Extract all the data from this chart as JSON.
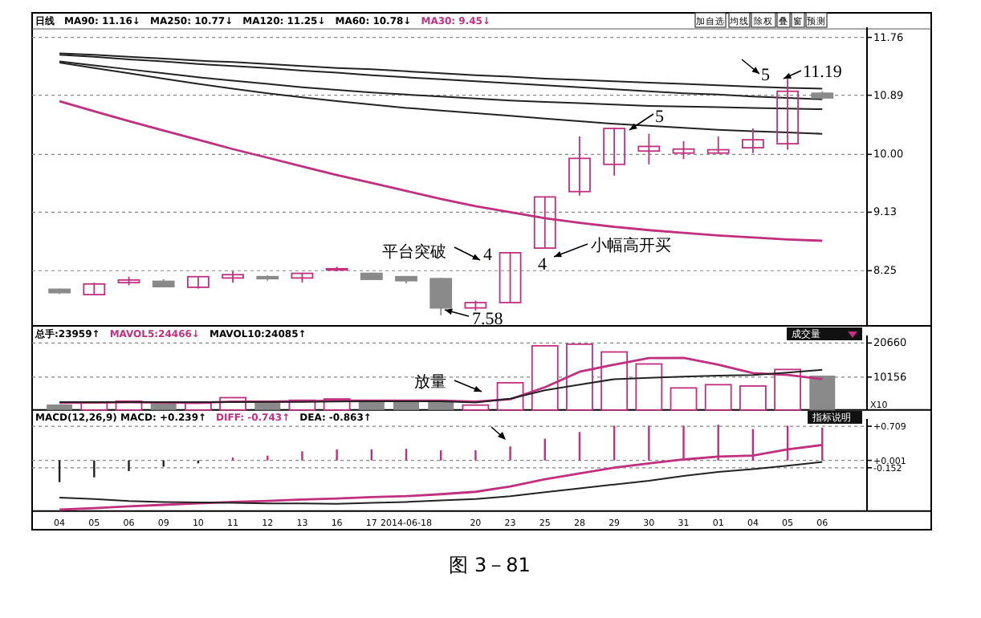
{
  "chart_data": [
    {
      "type": "candlestick",
      "categories": [
        "04",
        "05",
        "06",
        "09",
        "10",
        "11",
        "12",
        "13",
        "16",
        "17",
        "2014-06-18",
        null,
        "20",
        "23",
        "25",
        "28",
        "29",
        "30",
        "31",
        "01",
        "04",
        "05",
        "06"
      ],
      "ohlc": [
        [
          7.97,
          7.98,
          7.9,
          7.92
        ],
        [
          7.89,
          8.07,
          7.89,
          8.05
        ],
        [
          8.07,
          8.16,
          8.03,
          8.11
        ],
        [
          8.09,
          8.12,
          8.0,
          8.01
        ],
        [
          8.0,
          8.17,
          7.98,
          8.16
        ],
        [
          8.14,
          8.24,
          8.07,
          8.19
        ],
        [
          8.16,
          8.18,
          8.1,
          8.13
        ],
        [
          8.14,
          8.22,
          8.07,
          8.21
        ],
        [
          8.27,
          8.31,
          8.24,
          8.28
        ],
        [
          8.21,
          8.22,
          8.12,
          8.12
        ],
        [
          8.16,
          8.17,
          8.06,
          8.1
        ],
        [
          8.13,
          8.14,
          7.58,
          7.69
        ],
        [
          7.69,
          7.8,
          7.65,
          7.77
        ],
        [
          7.77,
          8.53,
          7.77,
          8.52
        ],
        [
          8.59,
          9.36,
          8.59,
          9.36
        ],
        [
          9.44,
          10.27,
          9.38,
          9.94
        ],
        [
          9.85,
          10.4,
          9.68,
          10.39
        ],
        [
          10.05,
          10.31,
          9.85,
          10.12
        ],
        [
          10.02,
          10.2,
          9.93,
          10.08
        ],
        [
          10.02,
          10.27,
          10.01,
          10.07
        ],
        [
          10.1,
          10.39,
          10.02,
          10.22
        ],
        [
          10.16,
          11.19,
          10.07,
          10.95
        ],
        [
          10.92,
          10.95,
          10.83,
          10.85
        ]
      ],
      "colors": [
        "#8a8a8a",
        "#c0307f",
        "#c0307f",
        "#8a8a8a",
        "#c0307f",
        "#c0307f",
        "#8a8a8a",
        "#c0307f",
        "#c0307f",
        "#8a8a8a",
        "#8a8a8a",
        "#8a8a8a",
        "#c0307f",
        "#c0307f",
        "#c0307f",
        "#c0307f",
        "#c0307f",
        "#c0307f",
        "#c0307f",
        "#c0307f",
        "#c0307f",
        "#c0307f",
        "#8a8a8a"
      ],
      "series": [
        {
          "type": "line",
          "color": "#222222",
          "values": [
            11.52,
            11.5,
            11.47,
            11.44,
            11.41,
            11.39,
            11.36,
            11.33,
            11.3,
            11.28,
            11.25,
            11.22,
            11.19,
            11.17,
            11.14,
            11.12,
            11.1,
            11.08,
            11.06,
            11.04,
            11.02,
            11.0,
            10.99
          ]
        },
        {
          "type": "line",
          "color": "#222222",
          "values": [
            11.5,
            11.47,
            11.43,
            11.4,
            11.36,
            11.33,
            11.3,
            11.26,
            11.23,
            11.19,
            11.16,
            11.13,
            11.1,
            11.07,
            11.04,
            11.01,
            10.98,
            10.95,
            10.92,
            10.9,
            10.87,
            10.85,
            10.83
          ]
        },
        {
          "type": "line",
          "color": "#222222",
          "values": [
            11.4,
            11.34,
            11.28,
            11.22,
            11.16,
            11.11,
            11.06,
            11.01,
            10.97,
            10.93,
            10.9,
            10.87,
            10.84,
            10.81,
            10.79,
            10.77,
            10.75,
            10.73,
            10.72,
            10.71,
            10.7,
            10.69,
            10.68
          ]
        },
        {
          "type": "line",
          "color": "#222222",
          "values": [
            11.38,
            11.3,
            11.22,
            11.14,
            11.06,
            10.99,
            10.92,
            10.86,
            10.8,
            10.75,
            10.7,
            10.66,
            10.62,
            10.58,
            10.54,
            10.5,
            10.46,
            10.43,
            10.4,
            10.37,
            10.35,
            10.33,
            10.31
          ]
        },
        {
          "type": "line",
          "color": "#c0307f",
          "values": [
            10.8,
            10.65,
            10.5,
            10.36,
            10.22,
            10.08,
            9.95,
            9.82,
            9.69,
            9.57,
            9.45,
            9.33,
            9.22,
            9.13,
            9.04,
            8.97,
            8.91,
            8.86,
            8.82,
            8.78,
            8.75,
            8.72,
            8.7
          ]
        }
      ],
      "ylim": [
        7.42,
        11.84
      ],
      "yticks": [
        8.25,
        9.13,
        {
          "value": 10,
          "label": "10.00"
        },
        10.89,
        11.76
      ],
      "grid": "y",
      "tick_labels": "y",
      "annotations": [
        "日线",
        "MA90: 11.16↓",
        "MA250: 10.77↓",
        "MA120: 11.25↓",
        "MA60: 10.78↓",
        "MA30: 9.45↓",
        "加自选",
        "均线",
        "除权",
        "叠",
        "窗",
        "预测",
        "平台突破",
        "4",
        "4",
        "小幅高开买",
        "5",
        "5",
        "11.19",
        "7.58"
      ]
    },
    {
      "type": "bar",
      "categories": [
        "04",
        "05",
        "06",
        "09",
        "10",
        "11",
        "12",
        "13",
        "16",
        "17",
        "2014-06-18",
        null,
        "20",
        "23",
        "25",
        "28",
        "29",
        "30",
        "31",
        "01",
        "04",
        "05",
        "06"
      ],
      "series": [
        {
          "type": "bar",
          "color": "#c0307f",
          "values": [
            null,
            2300,
            2700,
            null,
            2100,
            3800,
            null,
            3000,
            3400,
            null,
            null,
            null,
            1500,
            8400,
            19800,
            20300,
            17900,
            14200,
            6800,
            7800,
            7400,
            12500,
            null
          ]
        },
        {
          "type": "bar",
          "color": "#8a8a8a",
          "values": [
            1700,
            null,
            null,
            2300,
            null,
            null,
            2500,
            null,
            null,
            2800,
            2800,
            2800,
            null,
            null,
            null,
            null,
            null,
            null,
            null,
            null,
            null,
            null,
            10600
          ]
        },
        {
          "type": "line",
          "color": "#c0307f",
          "values": [
            2200,
            2300,
            2400,
            2300,
            2200,
            2600,
            2600,
            2700,
            2900,
            2900,
            2900,
            2900,
            2600,
            3300,
            7000,
            11800,
            14000,
            16000,
            16100,
            14000,
            11400,
            10800,
            9500
          ]
        },
        {
          "type": "line",
          "color": "#222222",
          "values": [
            2400,
            2400,
            2400,
            2400,
            2400,
            2400,
            2500,
            2500,
            2600,
            2700,
            2700,
            2700,
            2300,
            3500,
            6100,
            7800,
            9500,
            9900,
            10300,
            10600,
            10800,
            11500,
            12400
          ]
        }
      ],
      "ylim": [
        0,
        21500
      ],
      "yticks": [
        20660,
        10156
      ],
      "grid": "y",
      "tick_labels": "y",
      "annotations": [
        "总手:23959↑",
        "MAVOL5:24466↓",
        "MAVOL10:24085↑",
        "成交量",
        "放量",
        "X10"
      ]
    },
    {
      "type": "bar",
      "categories": [
        "04",
        "05",
        "06",
        "09",
        "10",
        "11",
        "12",
        "13",
        "16",
        "17",
        "2014-06-18",
        null,
        "20",
        "23",
        "25",
        "28",
        "29",
        "30",
        "31",
        "01",
        "04",
        "05",
        "06"
      ],
      "series": [
        {
          "type": "bar",
          "colors": [
            "#222222",
            "#222222",
            "#222222",
            "#222222",
            "#222222",
            "#c0307f",
            "#c0307f",
            "#c0307f",
            "#c0307f",
            "#c0307f",
            "#c0307f",
            "#c0307f",
            "#c0307f",
            "#c0307f",
            "#c0307f",
            "#c0307f",
            "#c0307f",
            "#c0307f",
            "#c0307f",
            "#c0307f",
            "#c0307f",
            "#c0307f",
            "#c0307f"
          ],
          "values": [
            -0.45,
            -0.35,
            -0.22,
            -0.13,
            -0.06,
            0.06,
            0.1,
            0.19,
            0.23,
            0.23,
            0.24,
            0.21,
            0.21,
            0.29,
            0.45,
            0.59,
            0.72,
            0.72,
            0.72,
            0.74,
            0.65,
            0.72,
            0.68
          ]
        },
        {
          "type": "line",
          "color": "#c0307f",
          "values": [
            -1.02,
            -0.99,
            -0.95,
            -0.92,
            -0.89,
            -0.86,
            -0.84,
            -0.81,
            -0.79,
            -0.76,
            -0.74,
            -0.7,
            -0.65,
            -0.54,
            -0.39,
            -0.27,
            -0.15,
            -0.06,
            0.02,
            0.08,
            0.1,
            0.23,
            0.32
          ]
        },
        {
          "type": "line",
          "color": "#222222",
          "values": [
            -0.77,
            -0.8,
            -0.84,
            -0.86,
            -0.87,
            -0.88,
            -0.89,
            -0.89,
            -0.9,
            -0.88,
            -0.86,
            -0.83,
            -0.8,
            -0.74,
            -0.66,
            -0.58,
            -0.5,
            -0.42,
            -0.32,
            -0.24,
            -0.18,
            -0.11,
            -0.03
          ]
        }
      ],
      "ylim": [
        -1.05,
        0.76
      ],
      "yticks": [
        {
          "value": 0.709,
          "label": "+0.709"
        },
        {
          "value": 0.001,
          "label": "+0.001"
        },
        {
          "value": -0.152,
          "label": "-0.152"
        }
      ],
      "grid": "y",
      "annotations": [
        "MACD(12,26,9) MACD: +0.239↑",
        "DIFF: -0.743↑",
        "DEA: -0.863↑",
        "指标说明",
        "图 3－81"
      ]
    }
  ]
}
